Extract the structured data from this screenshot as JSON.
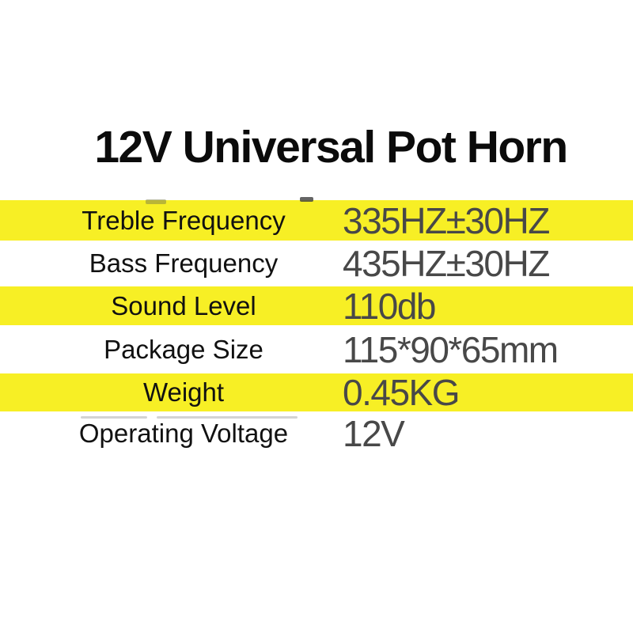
{
  "title": "12V Universal Pot Horn",
  "colors": {
    "background": "#FFFFFF",
    "highlight_yellow": "#F7EF25",
    "title_text": "#0B0B0B",
    "label_text": "#111111",
    "value_text": "#484848"
  },
  "spec_table": {
    "rows": [
      {
        "label": "Treble Frequency",
        "value": "335HZ±30HZ",
        "highlighted": true
      },
      {
        "label": "Bass Frequency",
        "value": "435HZ±30HZ",
        "highlighted": false
      },
      {
        "label": "Sound Level",
        "value": "110db",
        "highlighted": true
      },
      {
        "label": "Package Size",
        "value": "115*90*65mm",
        "highlighted": false
      },
      {
        "label": "Weight",
        "value": "0.45KG",
        "highlighted": true
      },
      {
        "label": "Operating Voltage",
        "value": "12V",
        "highlighted": false
      }
    ]
  }
}
